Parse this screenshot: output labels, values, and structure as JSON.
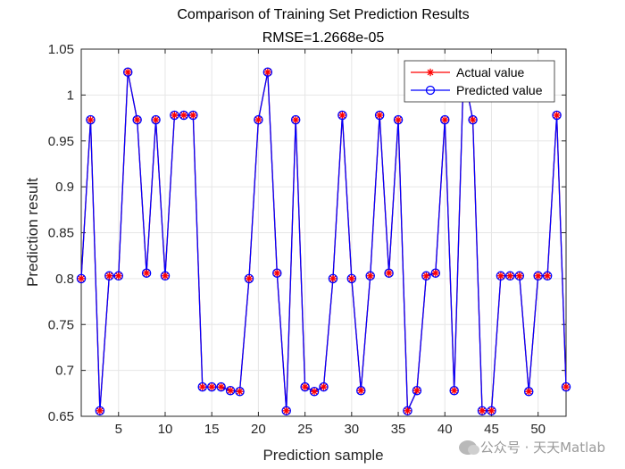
{
  "chart_data": {
    "type": "line",
    "title": "Comparison of Training Set Prediction Results",
    "subtitle": "RMSE=1.2668e-05",
    "xlabel": "Prediction sample",
    "ylabel": "Prediction result",
    "xlim": [
      1,
      53
    ],
    "ylim": [
      0.65,
      1.05
    ],
    "xticks": [
      5,
      10,
      15,
      20,
      25,
      30,
      35,
      40,
      45,
      50
    ],
    "yticks": [
      0.65,
      0.7,
      0.75,
      0.8,
      0.85,
      0.9,
      0.95,
      1,
      1.05
    ],
    "ytick_labels": [
      "0.65",
      "0.7",
      "0.75",
      "0.8",
      "0.85",
      "0.9",
      "0.95",
      "1",
      "1.05"
    ],
    "grid": true,
    "legend_position": "top-right",
    "x": [
      1,
      2,
      3,
      4,
      5,
      6,
      7,
      8,
      9,
      10,
      11,
      12,
      13,
      14,
      15,
      16,
      17,
      18,
      19,
      20,
      21,
      22,
      23,
      24,
      25,
      26,
      27,
      28,
      29,
      30,
      31,
      32,
      33,
      34,
      35,
      36,
      37,
      38,
      39,
      40,
      41,
      42,
      43,
      44,
      45,
      46,
      47,
      48,
      49,
      50,
      51,
      52,
      53
    ],
    "series": [
      {
        "name": "Actual value",
        "color": "#ff0000",
        "marker": "asterisk",
        "values": [
          0.8,
          0.973,
          0.656,
          0.803,
          0.803,
          1.025,
          0.973,
          0.806,
          0.973,
          0.803,
          0.978,
          0.978,
          0.978,
          0.682,
          0.682,
          0.682,
          0.678,
          0.677,
          0.8,
          0.973,
          1.025,
          0.806,
          0.656,
          0.973,
          0.682,
          0.677,
          0.682,
          0.8,
          0.978,
          0.8,
          0.678,
          0.803,
          0.978,
          0.806,
          0.973,
          0.656,
          0.678,
          0.803,
          0.806,
          0.973,
          0.678,
          1.025,
          0.973,
          0.656,
          0.656,
          0.803,
          0.803,
          0.803,
          0.677,
          0.803,
          0.803,
          0.978,
          0.682
        ]
      },
      {
        "name": "Predicted value",
        "color": "#0000ff",
        "marker": "circle",
        "values": [
          0.8,
          0.973,
          0.656,
          0.803,
          0.803,
          1.025,
          0.973,
          0.806,
          0.973,
          0.803,
          0.978,
          0.978,
          0.978,
          0.682,
          0.682,
          0.682,
          0.678,
          0.677,
          0.8,
          0.973,
          1.025,
          0.806,
          0.656,
          0.973,
          0.682,
          0.677,
          0.682,
          0.8,
          0.978,
          0.8,
          0.678,
          0.803,
          0.978,
          0.806,
          0.973,
          0.656,
          0.678,
          0.803,
          0.806,
          0.973,
          0.678,
          1.025,
          0.973,
          0.656,
          0.656,
          0.803,
          0.803,
          0.803,
          0.677,
          0.803,
          0.803,
          0.978,
          0.682
        ]
      }
    ]
  },
  "watermark": {
    "text": "公众号 · 天天Matlab",
    "icon": "wechat-icon"
  }
}
